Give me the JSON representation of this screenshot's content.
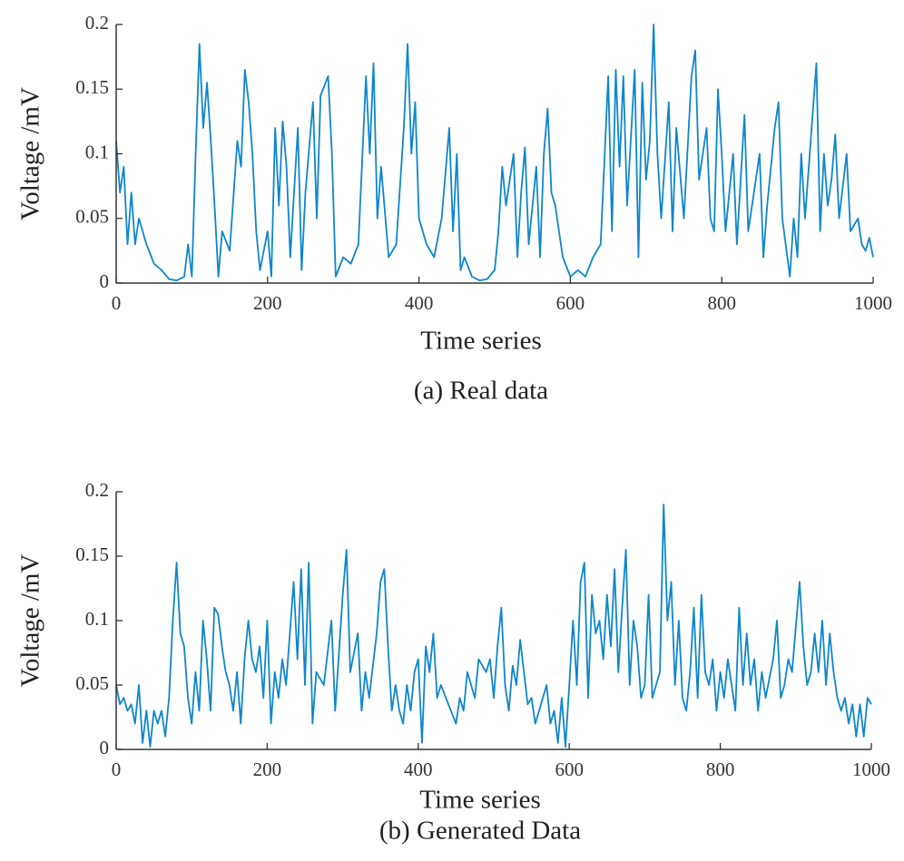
{
  "chart_data": [
    {
      "type": "line",
      "ylabel": "Voltage /mV",
      "xlabel": "Time series",
      "caption": "(a) Real data",
      "color": "#0e86cc",
      "xlim": [
        0,
        1000
      ],
      "xticks": [
        0,
        200,
        400,
        600,
        800,
        1000
      ],
      "ylim": [
        0,
        0.2
      ],
      "yticks": [
        0,
        0.05,
        0.1,
        0.15,
        0.2
      ],
      "x": [
        0,
        5,
        10,
        15,
        20,
        25,
        30,
        40,
        50,
        60,
        70,
        80,
        90,
        95,
        100,
        105,
        110,
        115,
        120,
        125,
        130,
        135,
        140,
        150,
        160,
        165,
        170,
        175,
        180,
        185,
        190,
        200,
        205,
        210,
        215,
        220,
        225,
        230,
        240,
        245,
        250,
        260,
        265,
        270,
        280,
        285,
        290,
        300,
        310,
        320,
        330,
        335,
        340,
        345,
        350,
        360,
        370,
        380,
        385,
        390,
        395,
        400,
        410,
        420,
        430,
        440,
        445,
        450,
        455,
        460,
        470,
        480,
        490,
        500,
        505,
        510,
        515,
        525,
        530,
        535,
        540,
        545,
        555,
        560,
        565,
        570,
        575,
        580,
        590,
        600,
        610,
        620,
        630,
        640,
        650,
        655,
        660,
        665,
        670,
        675,
        685,
        690,
        695,
        700,
        705,
        710,
        715,
        720,
        730,
        735,
        740,
        750,
        760,
        765,
        770,
        780,
        785,
        790,
        795,
        800,
        805,
        815,
        820,
        830,
        835,
        840,
        850,
        855,
        860,
        870,
        875,
        880,
        890,
        895,
        900,
        905,
        910,
        920,
        925,
        930,
        935,
        940,
        945,
        950,
        955,
        965,
        970,
        980,
        985,
        990,
        995,
        1000
      ],
      "values": [
        0.11,
        0.07,
        0.09,
        0.03,
        0.07,
        0.03,
        0.05,
        0.03,
        0.015,
        0.01,
        0.003,
        0.002,
        0.005,
        0.03,
        0.005,
        0.1,
        0.185,
        0.12,
        0.155,
        0.11,
        0.06,
        0.005,
        0.04,
        0.025,
        0.11,
        0.09,
        0.165,
        0.14,
        0.1,
        0.04,
        0.01,
        0.04,
        0.005,
        0.12,
        0.06,
        0.125,
        0.09,
        0.02,
        0.12,
        0.01,
        0.07,
        0.14,
        0.05,
        0.145,
        0.16,
        0.1,
        0.005,
        0.02,
        0.015,
        0.03,
        0.16,
        0.1,
        0.17,
        0.05,
        0.09,
        0.02,
        0.03,
        0.12,
        0.185,
        0.1,
        0.14,
        0.05,
        0.03,
        0.02,
        0.05,
        0.12,
        0.04,
        0.1,
        0.01,
        0.02,
        0.005,
        0.002,
        0.003,
        0.01,
        0.04,
        0.09,
        0.06,
        0.1,
        0.02,
        0.07,
        0.105,
        0.03,
        0.09,
        0.02,
        0.1,
        0.135,
        0.07,
        0.06,
        0.02,
        0.005,
        0.01,
        0.005,
        0.02,
        0.03,
        0.16,
        0.04,
        0.165,
        0.09,
        0.16,
        0.06,
        0.165,
        0.02,
        0.155,
        0.08,
        0.11,
        0.2,
        0.1,
        0.05,
        0.14,
        0.04,
        0.12,
        0.05,
        0.16,
        0.18,
        0.08,
        0.12,
        0.05,
        0.04,
        0.15,
        0.1,
        0.04,
        0.1,
        0.03,
        0.13,
        0.04,
        0.06,
        0.1,
        0.02,
        0.06,
        0.12,
        0.14,
        0.05,
        0.005,
        0.05,
        0.02,
        0.1,
        0.05,
        0.13,
        0.17,
        0.04,
        0.1,
        0.06,
        0.08,
        0.115,
        0.05,
        0.1,
        0.04,
        0.05,
        0.03,
        0.025,
        0.035,
        0.02
      ]
    },
    {
      "type": "line",
      "ylabel": "Voltage /mV",
      "xlabel": "Time series",
      "caption": "(b) Generated Data",
      "color": "#0e86cc",
      "xlim": [
        0,
        1000
      ],
      "xticks": [
        0,
        200,
        400,
        600,
        800,
        1000
      ],
      "ylim": [
        0,
        0.2
      ],
      "yticks": [
        0,
        0.05,
        0.1,
        0.15,
        0.2
      ],
      "x": [
        0,
        5,
        10,
        15,
        20,
        25,
        30,
        35,
        40,
        45,
        50,
        55,
        60,
        65,
        70,
        75,
        80,
        85,
        90,
        95,
        100,
        105,
        110,
        115,
        120,
        125,
        130,
        135,
        140,
        145,
        150,
        155,
        160,
        165,
        170,
        175,
        180,
        185,
        190,
        195,
        200,
        205,
        210,
        215,
        220,
        225,
        235,
        240,
        245,
        250,
        255,
        260,
        265,
        275,
        285,
        290,
        300,
        305,
        310,
        320,
        325,
        330,
        335,
        345,
        350,
        355,
        360,
        365,
        370,
        375,
        380,
        385,
        390,
        395,
        400,
        405,
        410,
        415,
        420,
        425,
        430,
        440,
        450,
        455,
        460,
        465,
        475,
        480,
        490,
        495,
        500,
        505,
        510,
        515,
        520,
        525,
        530,
        535,
        540,
        545,
        550,
        555,
        560,
        570,
        575,
        580,
        585,
        590,
        595,
        600,
        605,
        610,
        615,
        620,
        625,
        630,
        635,
        640,
        645,
        650,
        655,
        660,
        665,
        670,
        675,
        680,
        685,
        690,
        695,
        700,
        705,
        710,
        715,
        720,
        725,
        730,
        735,
        740,
        745,
        750,
        755,
        760,
        765,
        770,
        775,
        780,
        785,
        790,
        795,
        800,
        805,
        810,
        815,
        820,
        825,
        830,
        835,
        840,
        845,
        850,
        855,
        860,
        870,
        875,
        880,
        885,
        890,
        895,
        905,
        910,
        915,
        920,
        925,
        930,
        935,
        940,
        945,
        950,
        955,
        960,
        965,
        970,
        975,
        980,
        985,
        990,
        995,
        1000
      ],
      "values": [
        0.05,
        0.035,
        0.04,
        0.03,
        0.035,
        0.02,
        0.05,
        0.005,
        0.03,
        0.002,
        0.03,
        0.02,
        0.03,
        0.01,
        0.04,
        0.1,
        0.145,
        0.09,
        0.08,
        0.04,
        0.02,
        0.06,
        0.03,
        0.1,
        0.07,
        0.03,
        0.11,
        0.105,
        0.08,
        0.06,
        0.05,
        0.03,
        0.06,
        0.02,
        0.07,
        0.1,
        0.07,
        0.06,
        0.08,
        0.04,
        0.1,
        0.02,
        0.06,
        0.04,
        0.07,
        0.05,
        0.13,
        0.07,
        0.14,
        0.05,
        0.145,
        0.02,
        0.06,
        0.05,
        0.1,
        0.03,
        0.12,
        0.155,
        0.06,
        0.09,
        0.03,
        0.06,
        0.04,
        0.09,
        0.13,
        0.14,
        0.08,
        0.03,
        0.05,
        0.03,
        0.02,
        0.05,
        0.03,
        0.06,
        0.07,
        0.005,
        0.08,
        0.06,
        0.09,
        0.04,
        0.05,
        0.035,
        0.02,
        0.04,
        0.03,
        0.06,
        0.04,
        0.07,
        0.06,
        0.07,
        0.04,
        0.08,
        0.11,
        0.05,
        0.03,
        0.065,
        0.05,
        0.085,
        0.06,
        0.035,
        0.04,
        0.02,
        0.03,
        0.05,
        0.02,
        0.03,
        0.005,
        0.04,
        0.002,
        0.05,
        0.1,
        0.05,
        0.13,
        0.145,
        0.04,
        0.12,
        0.09,
        0.1,
        0.07,
        0.12,
        0.08,
        0.14,
        0.06,
        0.11,
        0.155,
        0.05,
        0.1,
        0.08,
        0.04,
        0.05,
        0.12,
        0.04,
        0.05,
        0.06,
        0.19,
        0.1,
        0.13,
        0.05,
        0.1,
        0.04,
        0.03,
        0.06,
        0.11,
        0.04,
        0.12,
        0.06,
        0.05,
        0.07,
        0.03,
        0.06,
        0.04,
        0.07,
        0.05,
        0.03,
        0.11,
        0.05,
        0.09,
        0.05,
        0.07,
        0.03,
        0.06,
        0.04,
        0.07,
        0.1,
        0.04,
        0.05,
        0.07,
        0.06,
        0.13,
        0.08,
        0.05,
        0.06,
        0.09,
        0.06,
        0.1,
        0.05,
        0.09,
        0.06,
        0.04,
        0.03,
        0.04,
        0.02,
        0.035,
        0.01,
        0.035,
        0.01,
        0.04,
        0.035
      ]
    }
  ]
}
